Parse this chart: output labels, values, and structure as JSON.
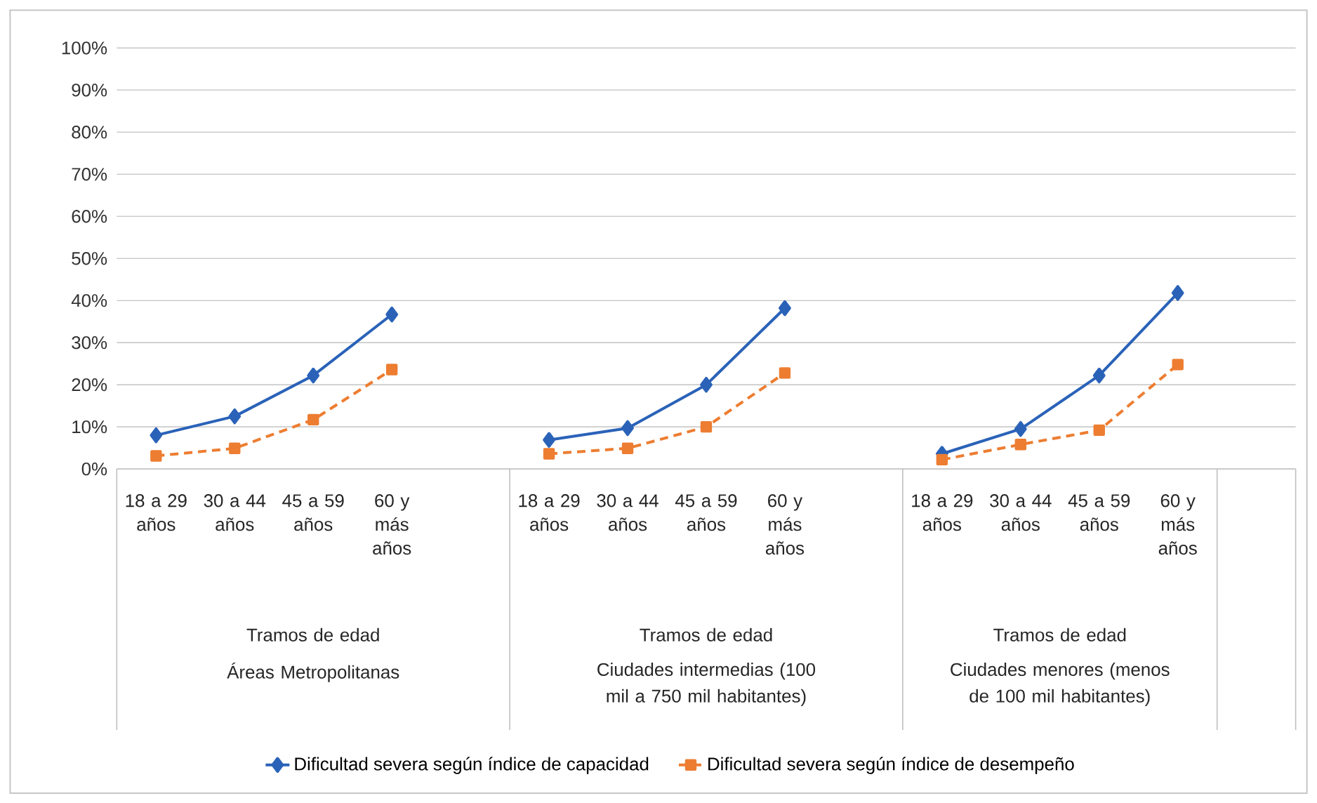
{
  "chart_data": {
    "type": "line",
    "categories": [
      "18 a 29 años",
      "30 a 44 años",
      "45 a 59 años",
      "60 y más años",
      null,
      "18 a 29 años",
      "30 a 44 años",
      "45 a 59 años",
      "60 y más años",
      null,
      "18 a 29 años",
      "30 a 44 años",
      "45 a 59 años",
      "60 y más años",
      null
    ],
    "series": [
      {
        "name": "Dificultad severa según índice de capacidad",
        "color": "#2a62b8",
        "marker": "diamond",
        "line_style": "solid",
        "values": [
          8.0,
          12.5,
          22.2,
          36.7,
          null,
          6.9,
          9.7,
          20.0,
          38.2,
          null,
          3.6,
          9.5,
          22.2,
          41.8,
          null
        ]
      },
      {
        "name": "Dificultad severa según índice de desempeño",
        "color": "#ed7d31",
        "marker": "square",
        "line_style": "dashed",
        "values": [
          3.1,
          4.9,
          11.7,
          23.6,
          null,
          3.6,
          4.9,
          10.0,
          22.8,
          null,
          2.2,
          5.8,
          9.2,
          24.8,
          null
        ]
      }
    ],
    "annotations": [
      "Tramos de edad",
      "Áreas Metropolitanas",
      "Tramos de edad",
      "Ciudades intermedias (100 mil a 750 mil habitantes)",
      "Tramos de edad",
      "Ciudades menores (menos de 100 mil habitantes)"
    ],
    "ylim": [
      0,
      100
    ],
    "yticks": [
      {
        "value": 0,
        "label": "0%"
      },
      {
        "value": 10,
        "label": "10%"
      },
      {
        "value": 20,
        "label": "20%"
      },
      {
        "value": 30,
        "label": "30%"
      },
      {
        "value": 40,
        "label": "40%"
      },
      {
        "value": 50,
        "label": "50%"
      },
      {
        "value": 60,
        "label": "60%"
      },
      {
        "value": 70,
        "label": "70%"
      },
      {
        "value": 80,
        "label": "80%"
      },
      {
        "value": 90,
        "label": "90%"
      },
      {
        "value": 100,
        "label": "100%"
      }
    ],
    "grid": "y",
    "legend": "bottom"
  }
}
